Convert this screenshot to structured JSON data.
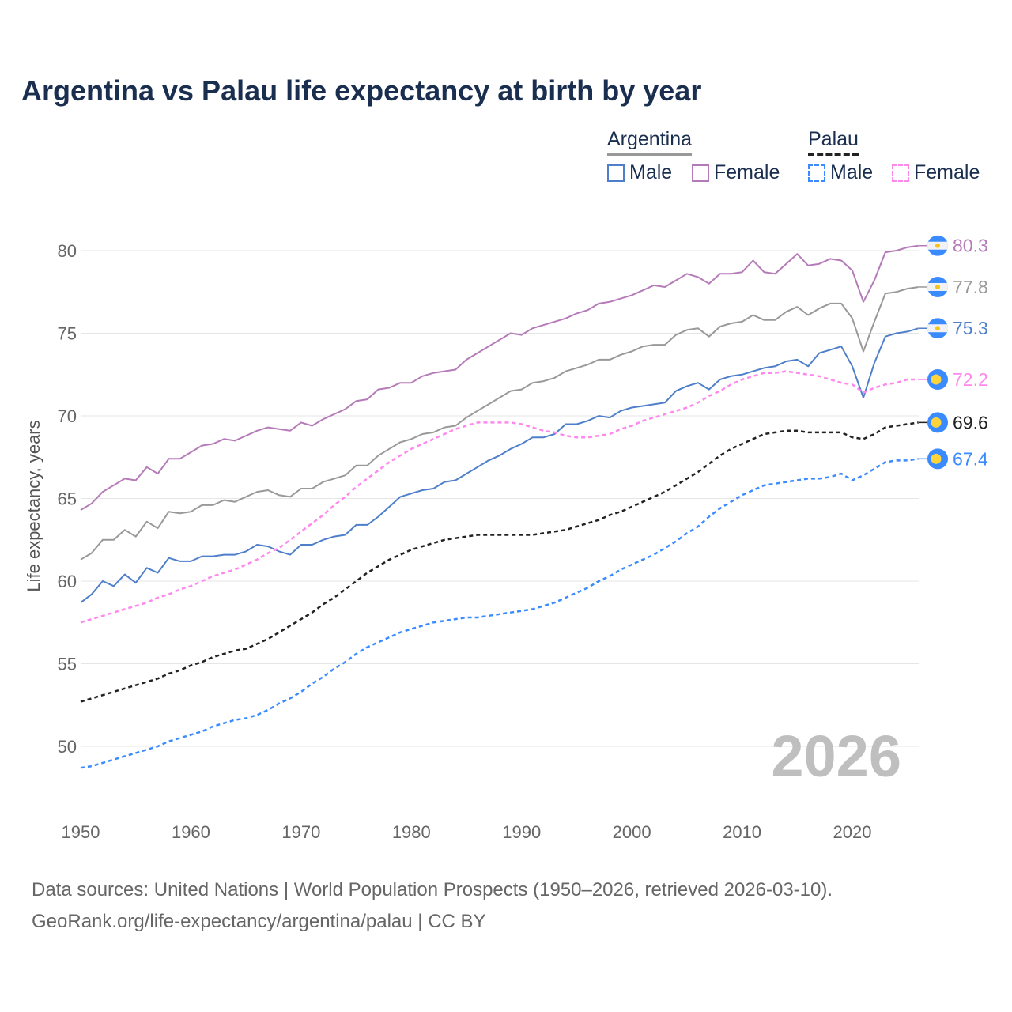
{
  "chart_data": {
    "type": "line",
    "title": "Argentina vs Palau life expectancy at birth by year",
    "xlabel": "",
    "ylabel": "Life expectancy, years",
    "xlim": [
      1950,
      2026
    ],
    "ylim": [
      47,
      83
    ],
    "x_ticks": [
      1950,
      1960,
      1970,
      1980,
      1990,
      2000,
      2010,
      2020
    ],
    "y_ticks": [
      50,
      55,
      60,
      65,
      70,
      75,
      80
    ],
    "grid": true,
    "watermark_year": "2026",
    "x_start": 1950,
    "legend": {
      "placement": "top-right",
      "groups": [
        {
          "name": "Argentina",
          "items": [
            "Male",
            "Female"
          ]
        },
        {
          "name": "Palau",
          "items": [
            "Male",
            "Female"
          ]
        }
      ]
    },
    "series": [
      {
        "name": "Argentina Female",
        "country": "Argentina",
        "sex": "Female",
        "color": "#b57bb8",
        "dashed": false,
        "end_label": "80.3",
        "flag": "argentina",
        "values": [
          64.3,
          64.7,
          65.4,
          65.8,
          66.2,
          66.1,
          66.9,
          66.5,
          67.4,
          67.4,
          67.8,
          68.2,
          68.3,
          68.6,
          68.5,
          68.8,
          69.1,
          69.3,
          69.2,
          69.1,
          69.6,
          69.4,
          69.8,
          70.1,
          70.4,
          70.9,
          71.0,
          71.6,
          71.7,
          72.0,
          72.0,
          72.4,
          72.6,
          72.7,
          72.8,
          73.4,
          73.8,
          74.2,
          74.6,
          75.0,
          74.9,
          75.3,
          75.5,
          75.7,
          75.9,
          76.2,
          76.4,
          76.8,
          76.9,
          77.1,
          77.3,
          77.6,
          77.9,
          77.8,
          78.2,
          78.6,
          78.4,
          78.0,
          78.6,
          78.6,
          78.7,
          79.4,
          78.7,
          78.6,
          79.2,
          79.8,
          79.1,
          79.2,
          79.5,
          79.4,
          78.8,
          76.9,
          78.2,
          79.9,
          80.0,
          80.2,
          80.3
        ]
      },
      {
        "name": "Argentina",
        "country": "Argentina",
        "sex": "Total",
        "color": "#999999",
        "dashed": false,
        "end_label": "77.8",
        "flag": "argentina",
        "values": [
          61.3,
          61.7,
          62.5,
          62.5,
          63.1,
          62.7,
          63.6,
          63.2,
          64.2,
          64.1,
          64.2,
          64.6,
          64.6,
          64.9,
          64.8,
          65.1,
          65.4,
          65.5,
          65.2,
          65.1,
          65.6,
          65.6,
          66.0,
          66.2,
          66.4,
          67.0,
          67.0,
          67.6,
          68.0,
          68.4,
          68.6,
          68.9,
          69.0,
          69.3,
          69.4,
          69.9,
          70.3,
          70.7,
          71.1,
          71.5,
          71.6,
          72.0,
          72.1,
          72.3,
          72.7,
          72.9,
          73.1,
          73.4,
          73.4,
          73.7,
          73.9,
          74.2,
          74.3,
          74.3,
          74.9,
          75.2,
          75.3,
          74.8,
          75.4,
          75.6,
          75.7,
          76.1,
          75.8,
          75.8,
          76.3,
          76.6,
          76.1,
          76.5,
          76.8,
          76.8,
          75.9,
          73.9,
          75.7,
          77.4,
          77.5,
          77.7,
          77.8
        ]
      },
      {
        "name": "Argentina Male",
        "country": "Argentina",
        "sex": "Male",
        "color": "#4f7fcb",
        "dashed": false,
        "end_label": "75.3",
        "flag": "argentina",
        "values": [
          58.7,
          59.2,
          60.0,
          59.7,
          60.4,
          59.9,
          60.8,
          60.5,
          61.4,
          61.2,
          61.2,
          61.5,
          61.5,
          61.6,
          61.6,
          61.8,
          62.2,
          62.1,
          61.8,
          61.6,
          62.2,
          62.2,
          62.5,
          62.7,
          62.8,
          63.4,
          63.4,
          63.9,
          64.5,
          65.1,
          65.3,
          65.5,
          65.6,
          66.0,
          66.1,
          66.5,
          66.9,
          67.3,
          67.6,
          68.0,
          68.3,
          68.7,
          68.7,
          68.9,
          69.5,
          69.5,
          69.7,
          70.0,
          69.9,
          70.3,
          70.5,
          70.6,
          70.7,
          70.8,
          71.5,
          71.8,
          72.0,
          71.6,
          72.2,
          72.4,
          72.5,
          72.7,
          72.9,
          73.0,
          73.3,
          73.4,
          73.0,
          73.8,
          74.0,
          74.2,
          73.0,
          71.1,
          73.2,
          74.8,
          75.0,
          75.1,
          75.3
        ]
      },
      {
        "name": "Palau Female",
        "country": "Palau",
        "sex": "Female",
        "color": "#ff88ee",
        "dashed": true,
        "end_label": "72.2",
        "flag": "palau",
        "values": [
          57.5,
          57.7,
          57.9,
          58.1,
          58.3,
          58.5,
          58.7,
          59.0,
          59.2,
          59.5,
          59.7,
          60.0,
          60.3,
          60.5,
          60.7,
          61.0,
          61.3,
          61.7,
          62.0,
          62.5,
          63.0,
          63.5,
          64.0,
          64.6,
          65.1,
          65.7,
          66.2,
          66.7,
          67.2,
          67.6,
          68.0,
          68.3,
          68.6,
          68.9,
          69.2,
          69.4,
          69.6,
          69.6,
          69.6,
          69.6,
          69.5,
          69.3,
          69.1,
          69.0,
          68.8,
          68.7,
          68.7,
          68.8,
          68.9,
          69.2,
          69.4,
          69.7,
          69.9,
          70.1,
          70.3,
          70.5,
          70.8,
          71.2,
          71.5,
          71.9,
          72.2,
          72.4,
          72.6,
          72.6,
          72.7,
          72.6,
          72.5,
          72.4,
          72.2,
          72.0,
          71.9,
          71.4,
          71.7,
          71.9,
          72.0,
          72.2,
          72.2
        ]
      },
      {
        "name": "Palau",
        "country": "Palau",
        "sex": "Total",
        "color": "#222222",
        "dashed": true,
        "end_label": "69.6",
        "flag": "palau",
        "values": [
          52.7,
          52.9,
          53.1,
          53.3,
          53.5,
          53.7,
          53.9,
          54.1,
          54.4,
          54.6,
          54.9,
          55.1,
          55.4,
          55.6,
          55.8,
          55.9,
          56.2,
          56.5,
          56.9,
          57.3,
          57.7,
          58.1,
          58.6,
          59.0,
          59.5,
          60.0,
          60.5,
          60.9,
          61.3,
          61.6,
          61.9,
          62.1,
          62.3,
          62.5,
          62.6,
          62.7,
          62.8,
          62.8,
          62.8,
          62.8,
          62.8,
          62.8,
          62.9,
          63.0,
          63.1,
          63.3,
          63.5,
          63.7,
          64.0,
          64.2,
          64.5,
          64.8,
          65.1,
          65.4,
          65.8,
          66.2,
          66.6,
          67.1,
          67.6,
          68.0,
          68.3,
          68.6,
          68.9,
          69.0,
          69.1,
          69.1,
          69.0,
          69.0,
          69.0,
          69.0,
          68.7,
          68.6,
          68.9,
          69.3,
          69.4,
          69.5,
          69.6
        ]
      },
      {
        "name": "Palau Male",
        "country": "Palau",
        "sex": "Male",
        "color": "#3a8bff",
        "dashed": true,
        "end_label": "67.4",
        "flag": "palau",
        "values": [
          48.7,
          48.8,
          49.0,
          49.2,
          49.4,
          49.6,
          49.8,
          50.0,
          50.3,
          50.5,
          50.7,
          50.9,
          51.2,
          51.4,
          51.6,
          51.7,
          51.9,
          52.2,
          52.6,
          52.9,
          53.3,
          53.8,
          54.2,
          54.7,
          55.1,
          55.6,
          56.0,
          56.3,
          56.6,
          56.9,
          57.1,
          57.3,
          57.5,
          57.6,
          57.7,
          57.8,
          57.8,
          57.9,
          58.0,
          58.1,
          58.2,
          58.3,
          58.5,
          58.7,
          59.0,
          59.3,
          59.6,
          60.0,
          60.3,
          60.7,
          61.0,
          61.3,
          61.6,
          62.0,
          62.4,
          62.9,
          63.3,
          63.9,
          64.4,
          64.8,
          65.2,
          65.5,
          65.8,
          65.9,
          66.0,
          66.1,
          66.2,
          66.2,
          66.3,
          66.5,
          66.1,
          66.4,
          66.8,
          67.2,
          67.3,
          67.3,
          67.4
        ]
      }
    ]
  },
  "legend": {
    "argentina": "Argentina",
    "palau": "Palau",
    "male": "Male",
    "female": "Female"
  },
  "source": {
    "line1": "Data sources: United Nations | World Population Prospects (1950–2026, retrieved 2026-03-10).",
    "line2": "GeoRank.org/life-expectancy/argentina/palau | CC BY"
  }
}
